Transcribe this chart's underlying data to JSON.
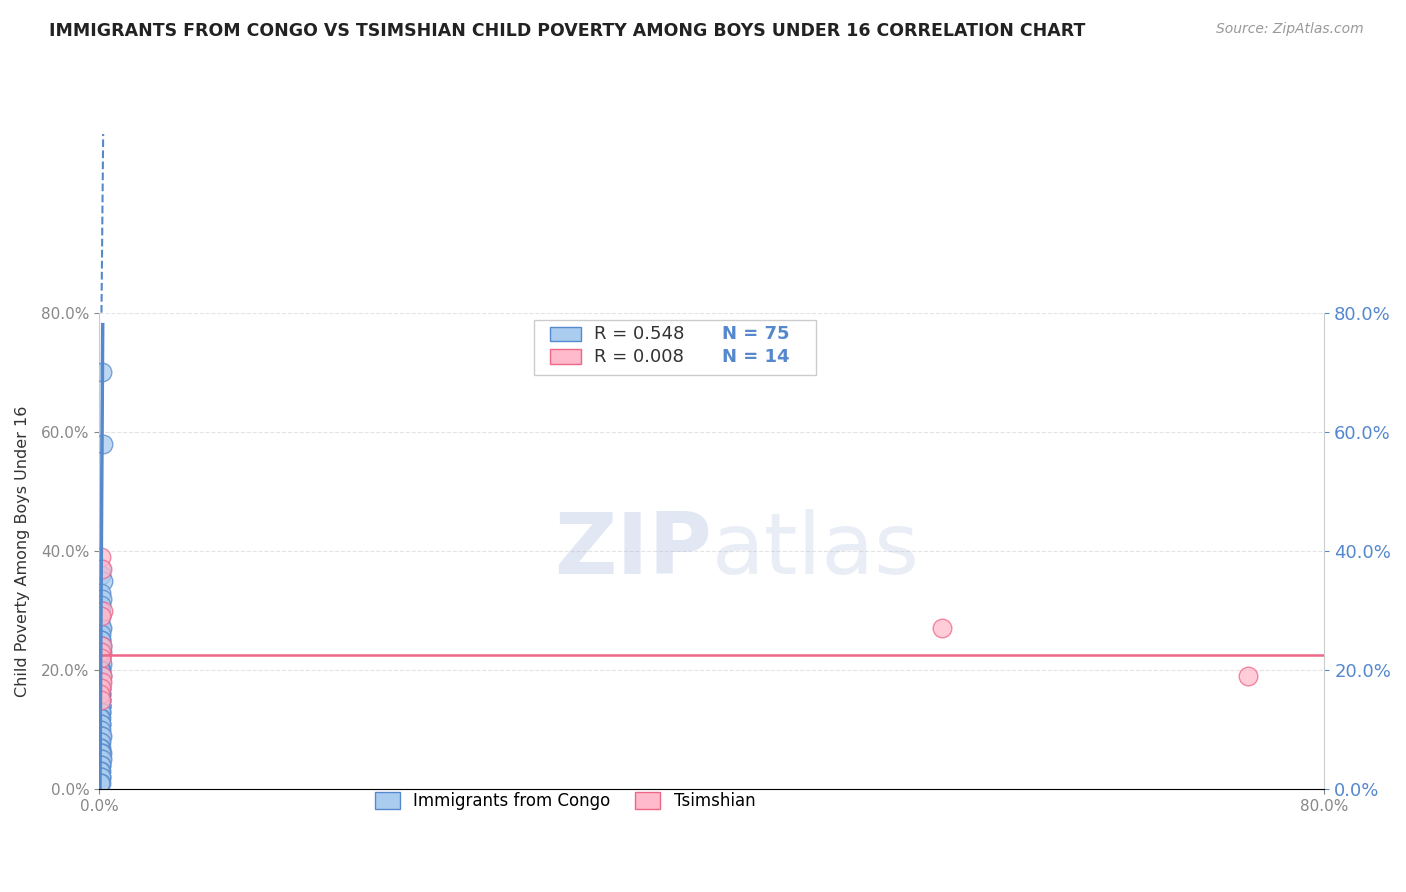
{
  "title": "IMMIGRANTS FROM CONGO VS TSIMSHIAN CHILD POVERTY AMONG BOYS UNDER 16 CORRELATION CHART",
  "source": "Source: ZipAtlas.com",
  "ylabel": "Child Poverty Among Boys Under 16",
  "watermark_zip": "ZIP",
  "watermark_atlas": "atlas",
  "legend_label1": "Immigrants from Congo",
  "legend_label2": "Tsimshian",
  "R1": 0.548,
  "N1": 75,
  "R2": 0.008,
  "N2": 14,
  "blue_color": "#5588CC",
  "blue_fill": "#AACCEE",
  "pink_color": "#EE6688",
  "pink_fill": "#FFBBCC",
  "blue_scatter_x": [
    0.0018,
    0.0022,
    0.0008,
    0.0012,
    0.0025,
    0.001,
    0.0015,
    0.0009,
    0.0014,
    0.0011,
    0.0007,
    0.0013,
    0.0016,
    0.001,
    0.0008,
    0.0012,
    0.002,
    0.0009,
    0.0017,
    0.0006,
    0.0011,
    0.0009,
    0.0007,
    0.0015,
    0.001,
    0.0013,
    0.0006,
    0.0009,
    0.0012,
    0.0016,
    0.0005,
    0.0008,
    0.0011,
    0.0009,
    0.0006,
    0.0012,
    0.0008,
    0.0014,
    0.0005,
    0.0009,
    0.0011,
    0.0006,
    0.0008,
    0.0012,
    0.0009,
    0.0005,
    0.0014,
    0.0008,
    0.0011,
    0.0006,
    0.0009,
    0.0012,
    0.0005,
    0.0008,
    0.0011,
    0.0008,
    0.0015,
    0.0005,
    0.0008,
    0.0011,
    0.0004,
    0.0007,
    0.002,
    0.0012,
    0.0009,
    0.0005,
    0.0016,
    0.0008,
    0.0012,
    0.0008,
    0.0004,
    0.0011,
    0.0008,
    0.0014,
    0.0004
  ],
  "blue_scatter_y": [
    0.7,
    0.58,
    0.37,
    0.36,
    0.35,
    0.33,
    0.32,
    0.31,
    0.3,
    0.29,
    0.28,
    0.27,
    0.27,
    0.26,
    0.25,
    0.25,
    0.24,
    0.24,
    0.23,
    0.23,
    0.22,
    0.22,
    0.21,
    0.21,
    0.2,
    0.2,
    0.2,
    0.19,
    0.19,
    0.19,
    0.18,
    0.18,
    0.18,
    0.17,
    0.17,
    0.17,
    0.16,
    0.16,
    0.16,
    0.15,
    0.15,
    0.15,
    0.14,
    0.14,
    0.14,
    0.13,
    0.13,
    0.13,
    0.12,
    0.12,
    0.11,
    0.11,
    0.1,
    0.1,
    0.09,
    0.09,
    0.09,
    0.08,
    0.08,
    0.07,
    0.07,
    0.06,
    0.06,
    0.06,
    0.05,
    0.05,
    0.05,
    0.04,
    0.04,
    0.03,
    0.03,
    0.02,
    0.02,
    0.01,
    0.01
  ],
  "pink_scatter_x": [
    0.0012,
    0.0018,
    0.0025,
    0.001,
    0.0015,
    0.0008,
    0.0012,
    0.002,
    0.0015,
    0.001,
    0.0007,
    0.0013,
    0.55,
    0.75
  ],
  "pink_scatter_y": [
    0.39,
    0.37,
    0.3,
    0.29,
    0.24,
    0.23,
    0.22,
    0.19,
    0.18,
    0.17,
    0.16,
    0.15,
    0.27,
    0.19
  ],
  "xlim": [
    0.0,
    0.8
  ],
  "ylim": [
    0.0,
    0.8
  ],
  "y_ticks": [
    0.0,
    0.2,
    0.4,
    0.6,
    0.8
  ],
  "x_ticks": [
    0.0,
    0.8
  ],
  "pink_trendline_y": 0.225,
  "grid_color": "#DDDDDD",
  "grid_style": "--"
}
